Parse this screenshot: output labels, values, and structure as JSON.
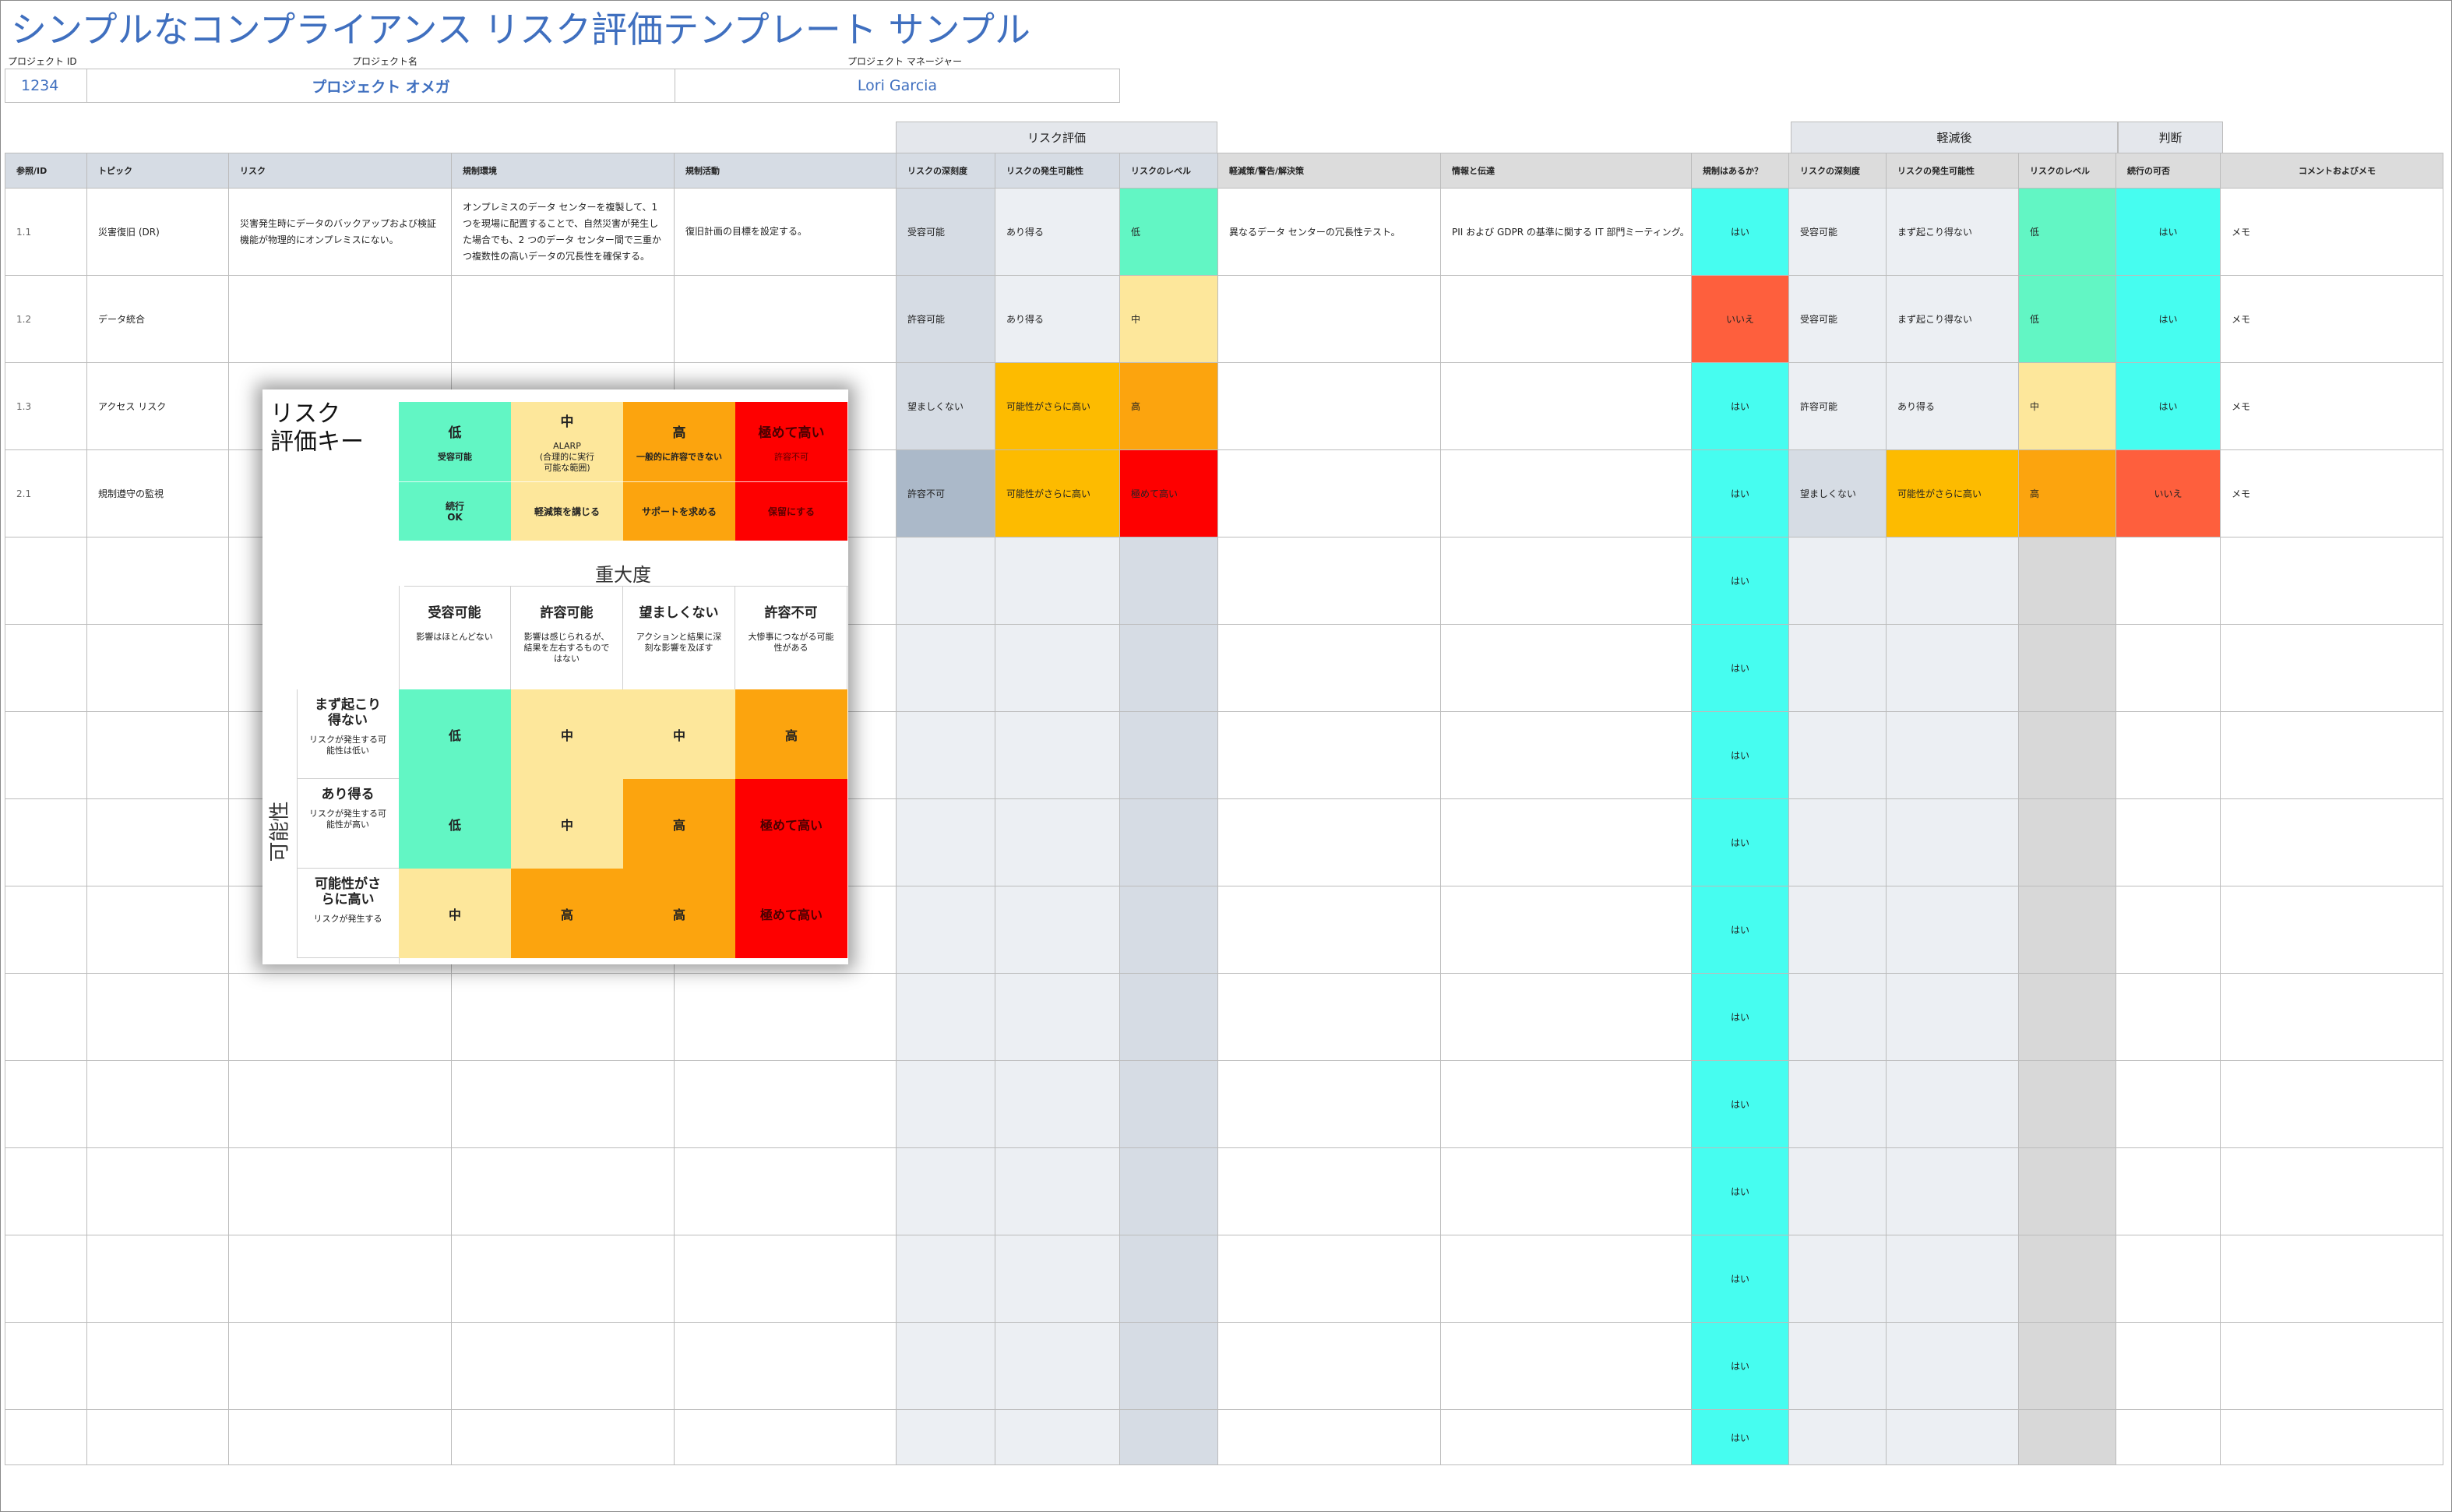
{
  "title": "シンプルなコンプライアンス リスク評価テンプレート サンプル",
  "project": {
    "id_label": "プロジェクト ID",
    "name_label": "プロジェクト名",
    "manager_label": "プロジェクト マネージャー",
    "id": "1234",
    "name": "プロジェクト オメガ",
    "manager": "Lori Garcia"
  },
  "groups": {
    "risk_eval": "リスク評価",
    "after": "軽減後",
    "judge": "判断"
  },
  "headers": [
    "参照/ID",
    "トピック",
    "リスク",
    "規制環境",
    "規制活動",
    "リスクの深刻度",
    "リスクの発生可能性",
    "リスクのレベル",
    "軽減策/警告/解決策",
    "情報と伝達",
    "規制はあるか？",
    "リスクの深刻度",
    "リスクの発生可能性",
    "リスクのレベル",
    "続行の可否",
    "コメントおよびメモ"
  ],
  "rows": [
    [
      "1.1",
      "災害復旧 (DR)",
      "災害発生時にデータのバックアップおよび検証機能が物理的にオンプレミスにない。",
      "オンプレミスのデータ センターを複製して、1 つを現場に配置することで、自然災害が発生した場合でも、2 つのデータ センター間で三重かつ複数性の高いデータの冗長性を確保する。",
      "復旧計画の目標を設定する。",
      "受容可能",
      "あり得る",
      "低",
      "異なるデータ センターの冗長性テスト。",
      "PII および GDPR の基準に関する IT 部門ミーティング。",
      "はい",
      "受容可能",
      "まず起こり得ない",
      "低",
      "はい",
      "メモ"
    ],
    [
      "1.2",
      "データ統合",
      "",
      "",
      "",
      "許容可能",
      "あり得る",
      "中",
      "",
      "",
      "いいえ",
      "受容可能",
      "まず起こり得ない",
      "低",
      "はい",
      "メモ"
    ],
    [
      "1.3",
      "アクセス リスク",
      "",
      "",
      "",
      "望ましくない",
      "可能性がさらに高い",
      "高",
      "",
      "",
      "はい",
      "許容可能",
      "あり得る",
      "中",
      "はい",
      "メモ"
    ],
    [
      "2.1",
      "規制遵守の監視",
      "",
      "",
      "",
      "許容不可",
      "可能性がさらに高い",
      "極めて高い",
      "",
      "",
      "はい",
      "望ましくない",
      "可能性がさらに高い",
      "高",
      "いいえ",
      "メモ"
    ],
    [
      "",
      "",
      "",
      "",
      "",
      "",
      "",
      "",
      "",
      "",
      "はい",
      "",
      "",
      "",
      "",
      ""
    ],
    [
      "",
      "",
      "",
      "",
      "",
      "",
      "",
      "",
      "",
      "",
      "はい",
      "",
      "",
      "",
      "",
      ""
    ],
    [
      "",
      "",
      "",
      "",
      "",
      "",
      "",
      "",
      "",
      "",
      "はい",
      "",
      "",
      "",
      "",
      ""
    ],
    [
      "",
      "",
      "",
      "",
      "",
      "",
      "",
      "",
      "",
      "",
      "はい",
      "",
      "",
      "",
      "",
      ""
    ],
    [
      "",
      "",
      "",
      "",
      "",
      "",
      "",
      "",
      "",
      "",
      "はい",
      "",
      "",
      "",
      "",
      ""
    ],
    [
      "",
      "",
      "",
      "",
      "",
      "",
      "",
      "",
      "",
      "",
      "はい",
      "",
      "",
      "",
      "",
      ""
    ],
    [
      "",
      "",
      "",
      "",
      "",
      "",
      "",
      "",
      "",
      "",
      "はい",
      "",
      "",
      "",
      "",
      ""
    ],
    [
      "",
      "",
      "",
      "",
      "",
      "",
      "",
      "",
      "",
      "",
      "はい",
      "",
      "",
      "",
      "",
      ""
    ],
    [
      "",
      "",
      "",
      "",
      "",
      "",
      "",
      "",
      "",
      "",
      "はい",
      "",
      "",
      "",
      "",
      ""
    ],
    [
      "",
      "",
      "",
      "",
      "",
      "",
      "",
      "",
      "",
      "",
      "はい",
      "",
      "",
      "",
      "",
      ""
    ],
    [
      "",
      "",
      "",
      "",
      "",
      "",
      "",
      "",
      "",
      "",
      "はい",
      "",
      "",
      "",
      "",
      ""
    ]
  ],
  "colors": {
    "low": "#62f6c4",
    "mid": "#fde79b",
    "high": "#fca40e",
    "very_high": "#fe0000",
    "amber": "#fdbb00",
    "yes": "#46fdf0",
    "no": "#fe5f3d",
    "lightgray": "#eceff3",
    "darkgray": "#d6dce4",
    "unacceptable_gray": "#abb9c9"
  },
  "key": {
    "title": "リスク\n評価キー",
    "levels": [
      {
        "name": "低",
        "sub": "受容可能",
        "action": "続行\nOK"
      },
      {
        "name": "中",
        "sub": "ALARP\n(合理的に実行\n可能な範囲)",
        "action": "軽減策を講じる"
      },
      {
        "name": "高",
        "sub": "一般的に許容できない",
        "action": "サポートを求める"
      },
      {
        "name": "極めて高い",
        "sub": "許容不可",
        "action": "保留にする"
      }
    ],
    "severity_label": "重大度",
    "severity": [
      {
        "name": "受容可能",
        "desc": "影響はほとんどない"
      },
      {
        "name": "許容可能",
        "desc": "影響は感じられるが、結果を左右するものではない"
      },
      {
        "name": "望ましくない",
        "desc": "アクションと結果に深刻な影響を及ぼす"
      },
      {
        "name": "許容不可",
        "desc": "大惨事につながる可能性がある"
      }
    ],
    "likelihood_label": "可能性",
    "likelihood": [
      {
        "name": "まず起こり得ない",
        "desc": "リスクが発生する可能性は低い"
      },
      {
        "name": "あり得る",
        "desc": "リスクが発生する可能性が高い"
      },
      {
        "name": "可能性がさらに高い",
        "desc": "リスクが発生する"
      }
    ],
    "matrix": [
      [
        "低",
        "中",
        "中",
        "高"
      ],
      [
        "低",
        "中",
        "高",
        "極めて高い"
      ],
      [
        "中",
        "高",
        "高",
        "極めて高い"
      ]
    ]
  }
}
